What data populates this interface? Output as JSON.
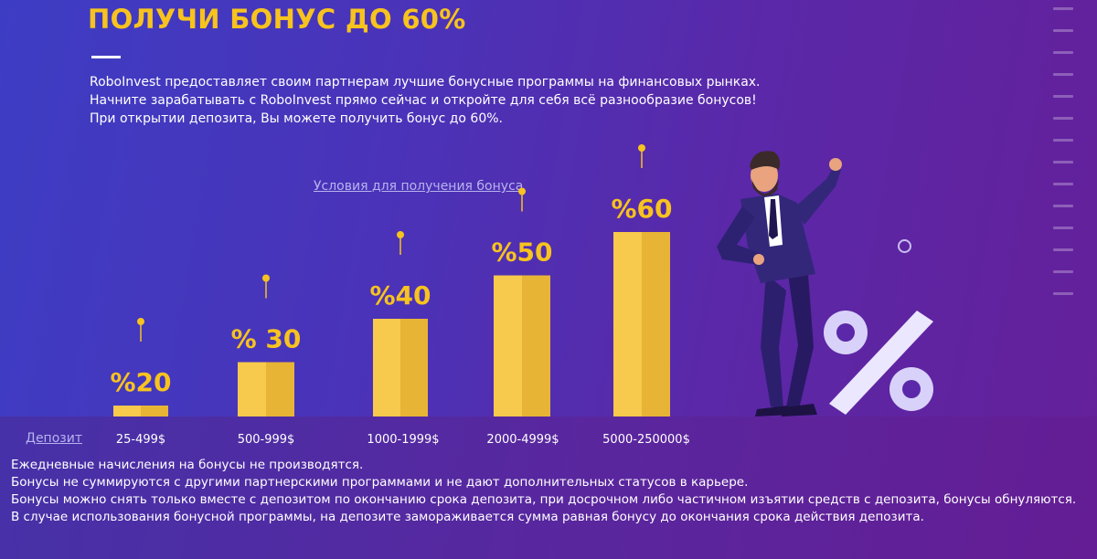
{
  "header": {
    "title": "ПОЛУЧИ БОНУС ДО 60%",
    "intro_lines": [
      "RoboInvest предоставляет своим партнерам лучшие бонусные программы на финансовых рынках.",
      "Начните зарабатывать с RoboInvest прямо сейчас и откройте для себя всё разнообразие бонусов!",
      "При открытии депозита, Вы можете получить бонус до 60%."
    ]
  },
  "conditions_link": "Условия для получения бонуса",
  "deposit_label": "Депозит",
  "chart_data": {
    "type": "bar",
    "title": "",
    "xlabel": "Депозит",
    "ylabel": "",
    "categories": [
      "25-499$",
      "500-999$",
      "1000-1999$",
      "2000-4999$",
      "5000-250000$"
    ],
    "values": [
      20,
      30,
      40,
      50,
      60
    ],
    "value_labels": [
      "%20",
      "% 30",
      "%40",
      "%50",
      "%60"
    ],
    "colors": {
      "bar": "#f7c94c",
      "bar_shade": "#e8b436",
      "pin": "#f7c31e"
    }
  },
  "notes": [
    "Ежедневные начисления на бонусы не производятся.",
    "Бонусы не суммируются с другими партнерскими программами и  не дают дополнительных статусов в карьере.",
    "Бонусы можно снять только вместе с депозитом по окончанию срока депозита, при досрочном либо частичном изъятии средств с депозита, бонусы обнуляются.",
    "В случае использования бонусной программы,  на депозите замораживается сумма равная бонусу до окончания срока действия депозита."
  ],
  "icons": {
    "percent_sign": "percent-icon",
    "figure": "businessman-illustration"
  }
}
